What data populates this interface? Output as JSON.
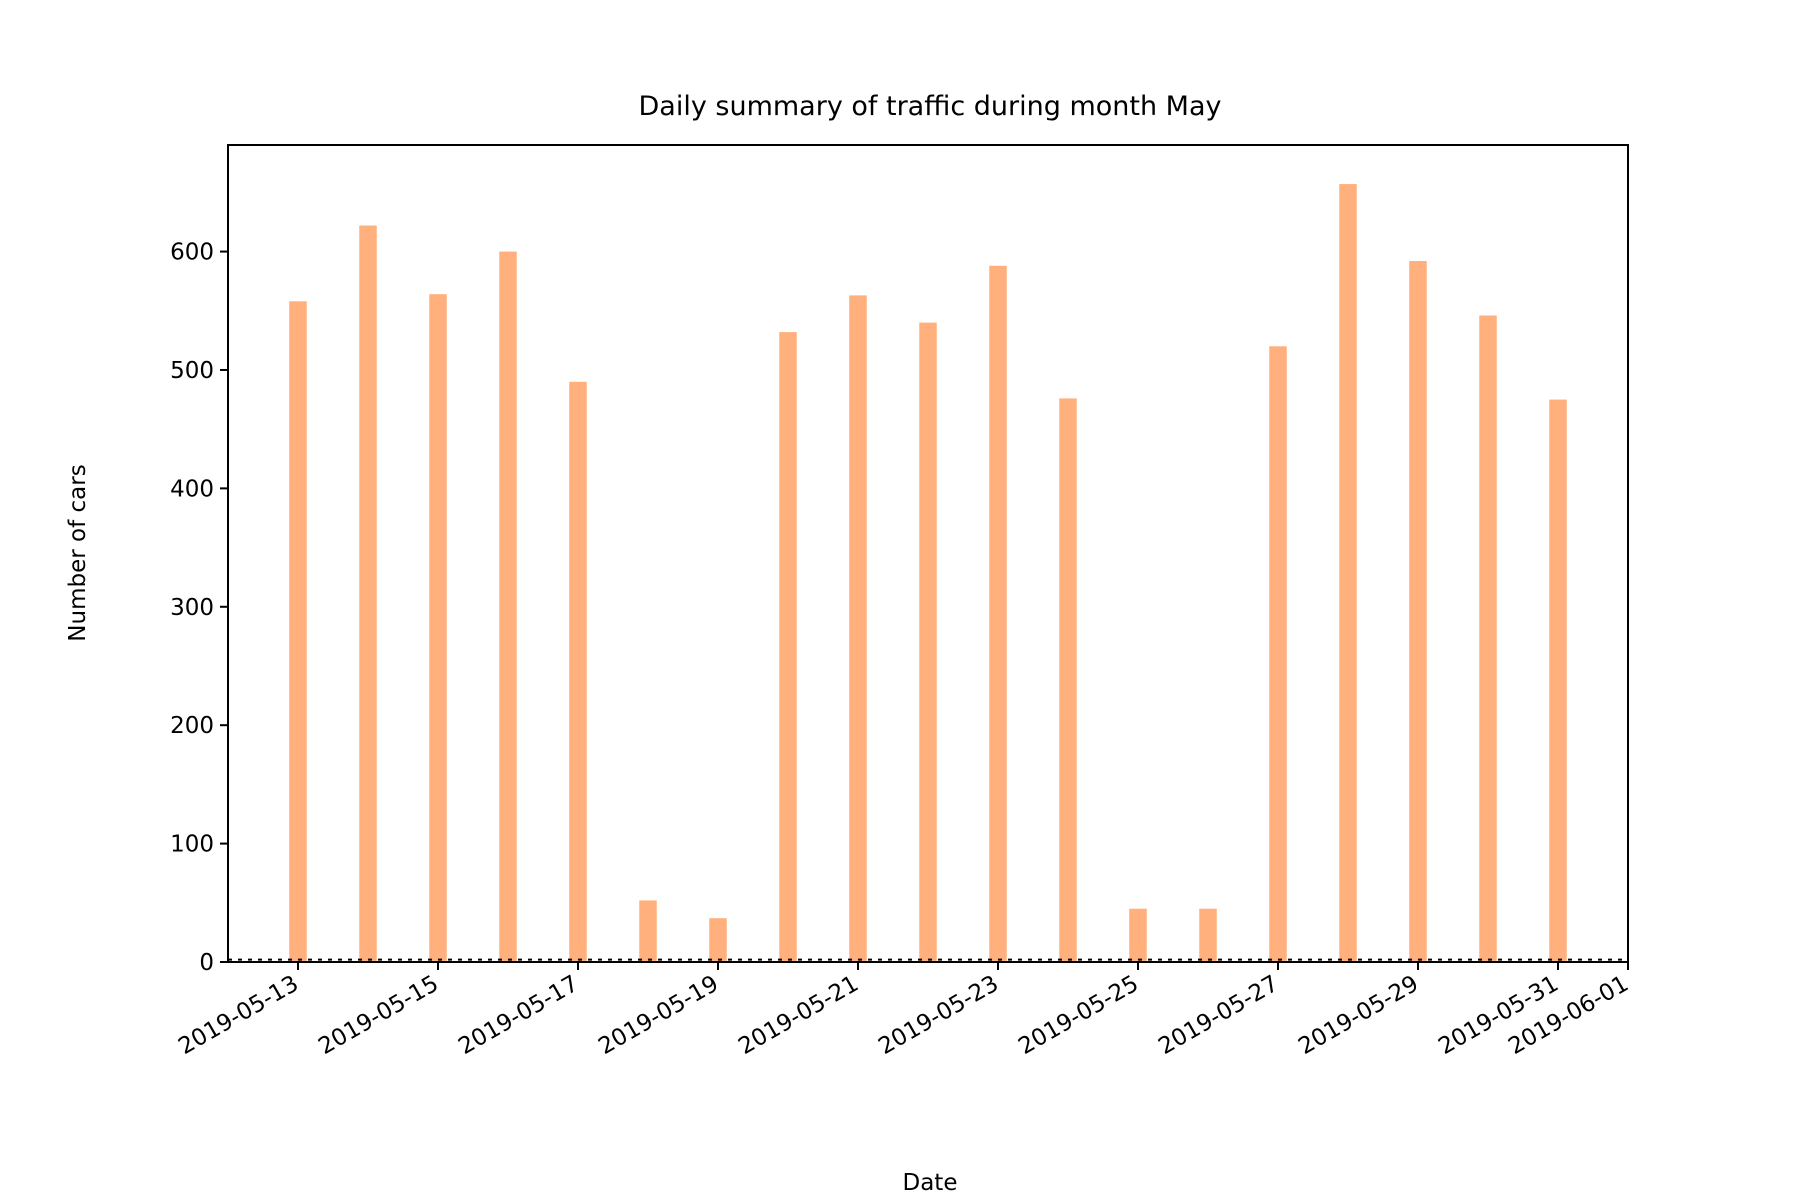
{
  "chart_data": {
    "type": "bar",
    "title": "Daily summary of traffic during month May",
    "xlabel": "Date",
    "ylabel": "Number of cars",
    "x": [
      "2019-05-13",
      "2019-05-14",
      "2019-05-15",
      "2019-05-16",
      "2019-05-17",
      "2019-05-18",
      "2019-05-19",
      "2019-05-20",
      "2019-05-21",
      "2019-05-22",
      "2019-05-23",
      "2019-05-24",
      "2019-05-25",
      "2019-05-26",
      "2019-05-27",
      "2019-05-28",
      "2019-05-29",
      "2019-05-30",
      "2019-05-31"
    ],
    "values": [
      558,
      622,
      564,
      600,
      490,
      52,
      37,
      532,
      563,
      540,
      588,
      476,
      45,
      45,
      520,
      657,
      592,
      546,
      475
    ],
    "xlim": [
      "2019-05-12",
      "2019-06-01"
    ],
    "ylim": [
      0,
      690
    ],
    "yticks": [
      0,
      100,
      200,
      300,
      400,
      500,
      600
    ],
    "xticks": [
      "2019-05-13",
      "2019-05-15",
      "2019-05-17",
      "2019-05-19",
      "2019-05-21",
      "2019-05-23",
      "2019-05-25",
      "2019-05-27",
      "2019-05-29",
      "2019-05-31",
      "2019-06-01"
    ],
    "reference_line": 2,
    "bar_color": "#ffb07c",
    "grid": false,
    "legend": false
  }
}
